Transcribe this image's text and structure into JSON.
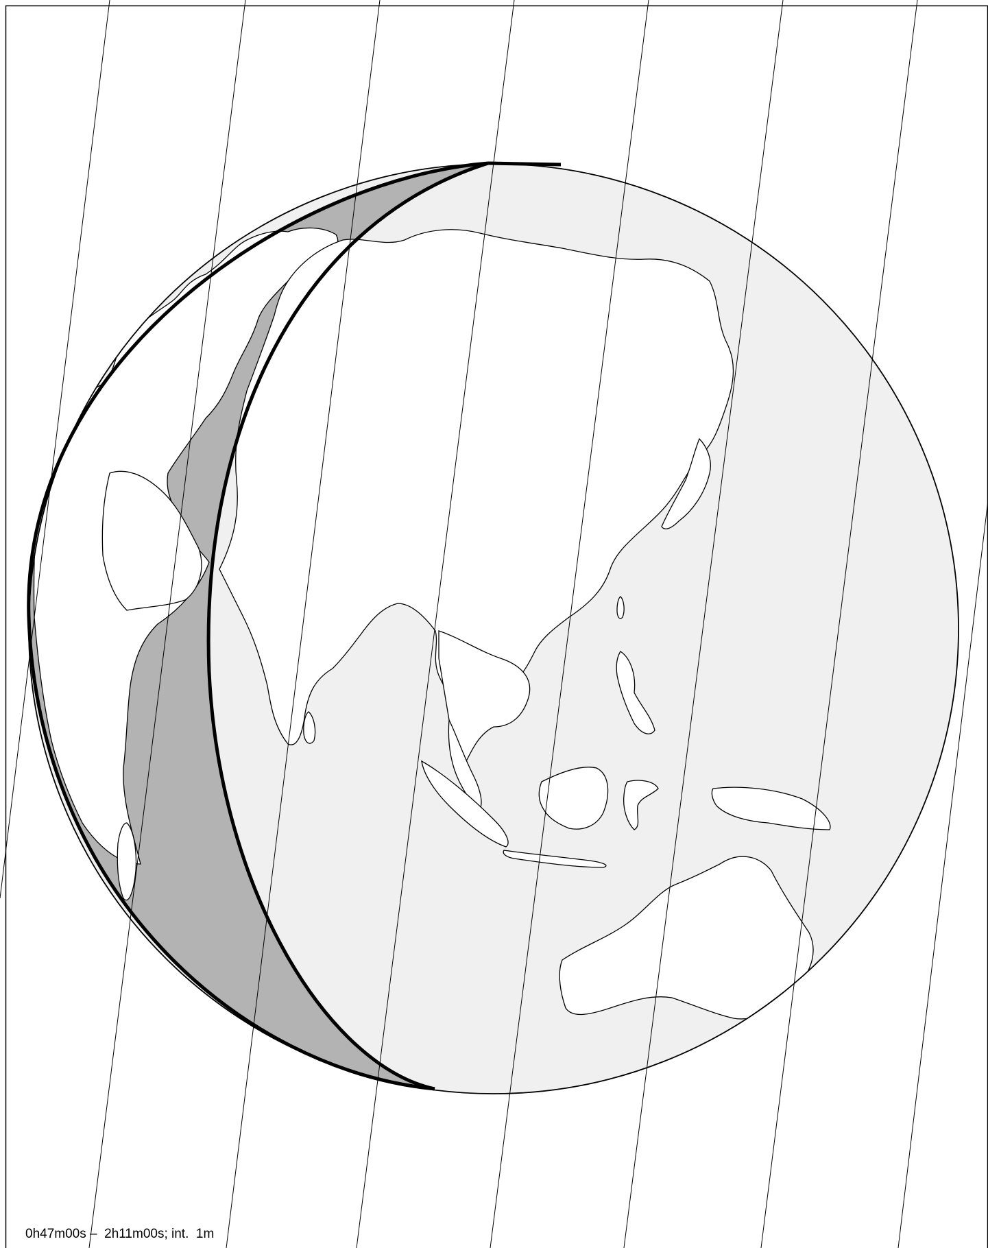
{
  "map": {
    "projection": "orthographic-globe",
    "regions_visible": [
      "Europe",
      "Africa",
      "Middle East",
      "Asia",
      "Southeast Asia",
      "Australia"
    ],
    "colors": {
      "land": "#ffffff",
      "ocean_night": "#f0f0f0",
      "ocean_shadow_band": "#b3b3b3",
      "outline": "#000000"
    },
    "overlays": {
      "time_meridians": "thin near-vertical lines",
      "terminator_curves": 2
    }
  },
  "caption": {
    "text": "0h47m00s –  2h11m00s; int.  1m"
  }
}
